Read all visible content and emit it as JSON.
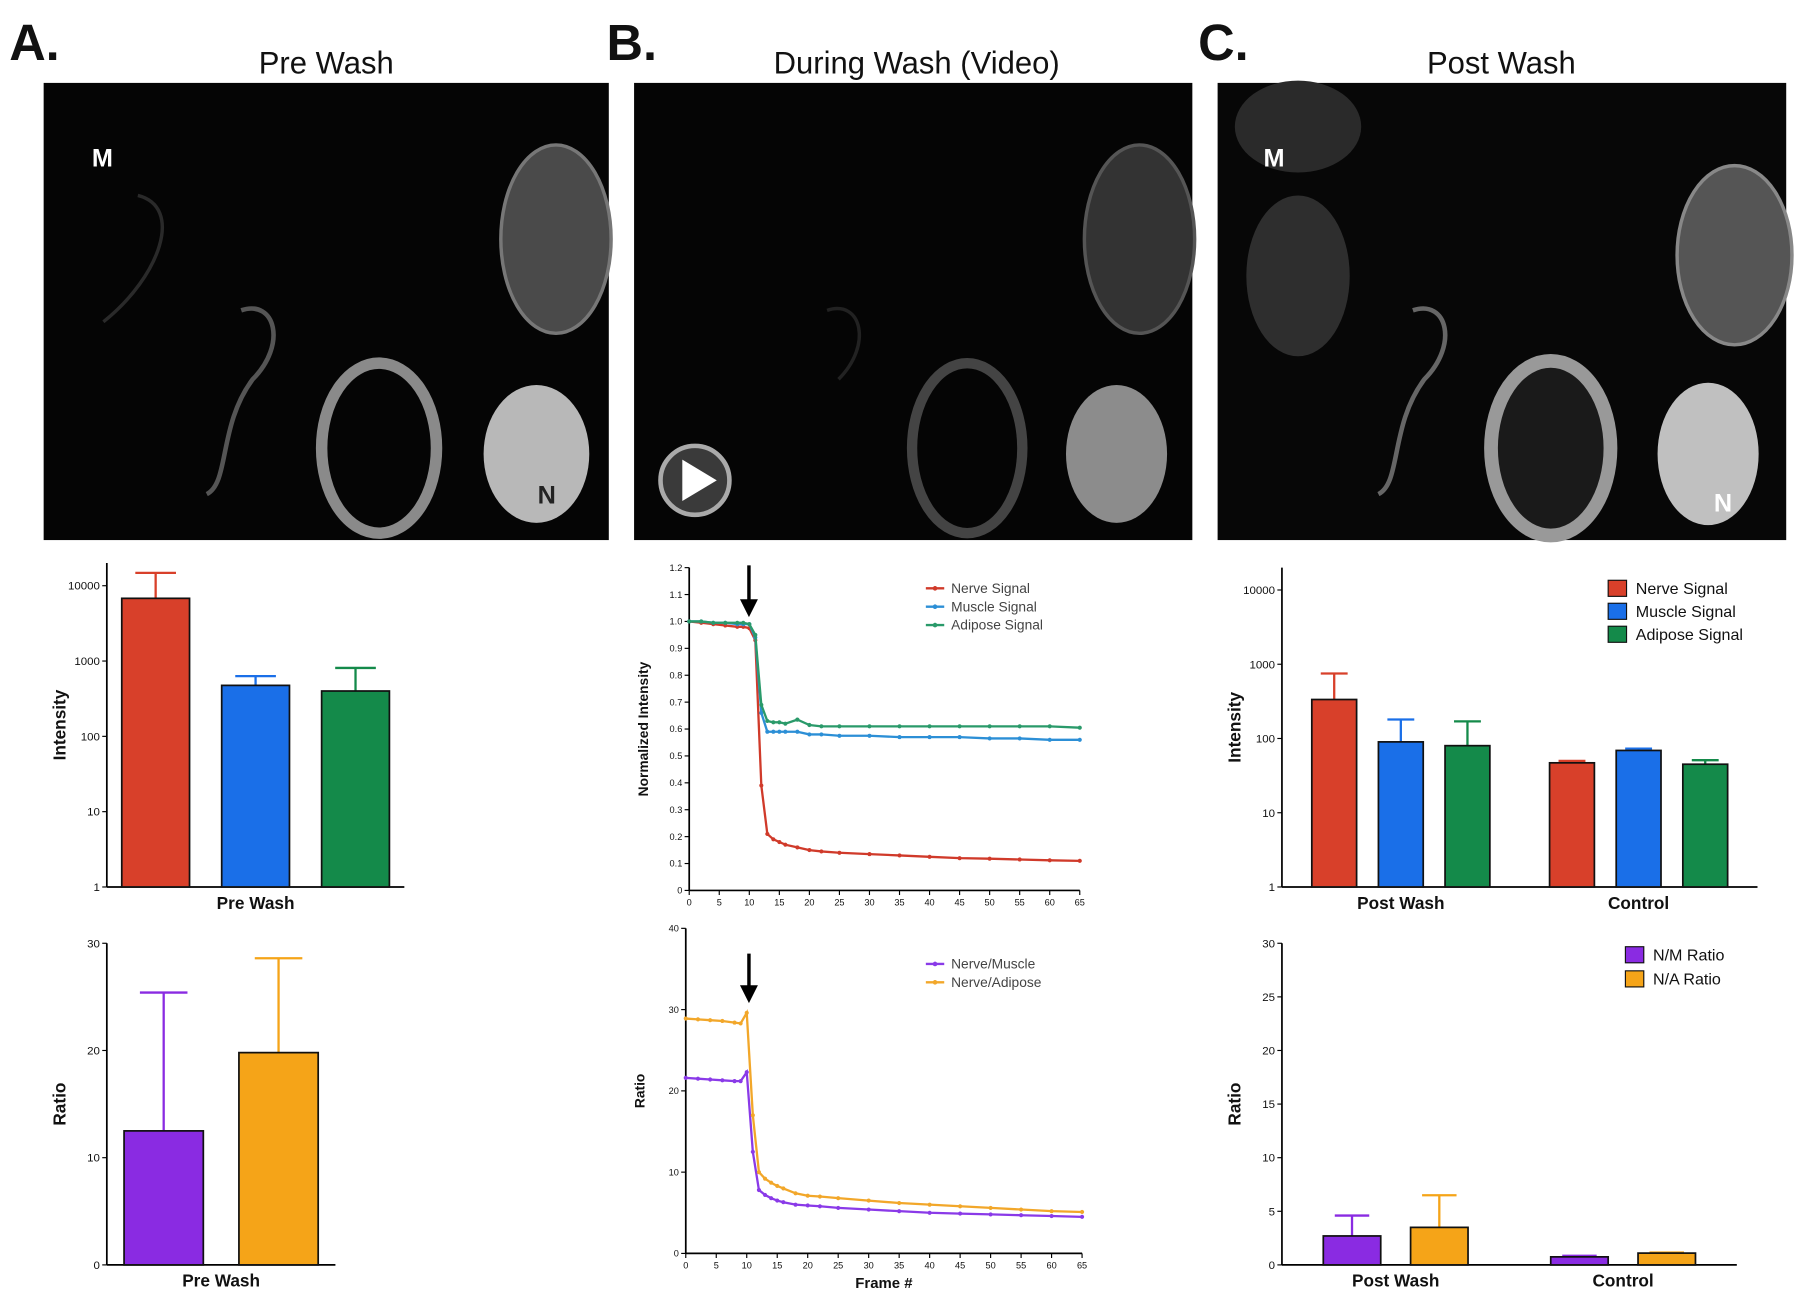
{
  "panels": [
    {
      "label": "A.",
      "title": "Pre Wash",
      "marks": [
        "M",
        "N"
      ]
    },
    {
      "label": "B.",
      "title": "During Wash (Video)"
    },
    {
      "label": "C.",
      "title": "Post Wash",
      "marks": [
        "M",
        "N"
      ]
    }
  ],
  "chart_data": [
    {
      "type": "bar",
      "log": true,
      "ylabel": "Intensity",
      "categories": [
        "Pre Wash"
      ],
      "ylim": [
        1,
        20000
      ],
      "yticks": [
        1,
        10,
        100,
        1000,
        10000
      ],
      "series": [
        {
          "color": "#d8402a",
          "values": [
            6800
          ],
          "errors": [
            8000
          ]
        },
        {
          "color": "#1a6fe8",
          "values": [
            475
          ],
          "errors": [
            155
          ]
        },
        {
          "color": "#148a4a",
          "values": [
            400
          ],
          "errors": [
            410
          ]
        }
      ]
    },
    {
      "type": "bar",
      "ylabel": "Ratio",
      "categories": [
        "Pre Wash"
      ],
      "ylim": [
        0,
        30
      ],
      "yticks": [
        0,
        10,
        20,
        30
      ],
      "series": [
        {
          "color": "#8a2be2",
          "values": [
            12.5
          ],
          "errors": [
            12.9
          ]
        },
        {
          "color": "#f5a418",
          "values": [
            19.8
          ],
          "errors": [
            8.8
          ]
        }
      ]
    },
    {
      "type": "line",
      "ylabel": "Normalized Intensity",
      "legend": "top-right",
      "x": [
        0,
        2,
        4,
        6,
        8,
        9,
        10,
        11,
        12,
        13,
        14,
        15,
        16,
        18,
        20,
        22,
        25,
        30,
        35,
        40,
        45,
        50,
        55,
        60,
        65
      ],
      "xlim": [
        0,
        65
      ],
      "xticks": [
        0,
        5,
        10,
        15,
        20,
        25,
        30,
        35,
        40,
        45,
        50,
        55,
        60,
        65
      ],
      "ylim": [
        0,
        1.2
      ],
      "yticks": [
        0,
        0.1,
        0.2,
        0.3,
        0.4,
        0.5,
        0.6,
        0.7,
        0.8,
        0.9,
        {
          "value": 1,
          "label": "1.0"
        },
        1.1,
        1.2
      ],
      "series": [
        {
          "name": "Nerve Signal",
          "color": "#d03a2a",
          "values": [
            1.0,
            0.995,
            0.99,
            0.985,
            0.98,
            0.98,
            0.975,
            0.93,
            0.39,
            0.21,
            0.19,
            0.18,
            0.17,
            0.16,
            0.15,
            0.145,
            0.14,
            0.135,
            0.13,
            0.125,
            0.12,
            0.118,
            0.115,
            0.112,
            0.11
          ]
        },
        {
          "name": "Muscle Signal",
          "color": "#2c8fd6",
          "values": [
            1.0,
            1.0,
            0.995,
            0.995,
            0.99,
            0.99,
            0.99,
            0.94,
            0.66,
            0.59,
            0.59,
            0.59,
            0.59,
            0.59,
            0.58,
            0.58,
            0.575,
            0.575,
            0.57,
            0.57,
            0.57,
            0.565,
            0.565,
            0.56,
            0.56
          ]
        },
        {
          "name": "Adipose Signal",
          "color": "#2a9a6a",
          "values": [
            1.0,
            1.0,
            0.995,
            0.995,
            0.995,
            0.995,
            0.99,
            0.95,
            0.69,
            0.63,
            0.625,
            0.625,
            0.62,
            0.635,
            0.615,
            0.61,
            0.61,
            0.61,
            0.61,
            0.61,
            0.61,
            0.61,
            0.61,
            0.61,
            0.605
          ]
        }
      ]
    },
    {
      "type": "line",
      "ylabel": "Ratio",
      "xlabel": "Frame #",
      "legend": "top-right",
      "x": [
        0,
        2,
        4,
        6,
        8,
        9,
        10,
        11,
        12,
        13,
        14,
        15,
        16,
        18,
        20,
        22,
        25,
        30,
        35,
        40,
        45,
        50,
        55,
        60,
        65
      ],
      "xlim": [
        0,
        65
      ],
      "xticks": [
        0,
        5,
        10,
        15,
        20,
        25,
        30,
        35,
        40,
        45,
        50,
        55,
        60,
        65
      ],
      "ylim": [
        0,
        40
      ],
      "yticks": [
        0,
        10,
        20,
        30,
        40
      ],
      "series": [
        {
          "name": "Nerve/Muscle",
          "color": "#8a3ae8",
          "values": [
            21.6,
            21.5,
            21.4,
            21.3,
            21.2,
            21.2,
            22.3,
            12.5,
            7.8,
            7.2,
            6.8,
            6.5,
            6.3,
            6.0,
            5.9,
            5.8,
            5.6,
            5.4,
            5.2,
            5.0,
            4.9,
            4.8,
            4.7,
            4.6,
            4.5
          ]
        },
        {
          "name": "Nerve/Adipose",
          "color": "#f2a72a",
          "values": [
            28.9,
            28.8,
            28.7,
            28.6,
            28.4,
            28.3,
            29.6,
            17.0,
            10.0,
            9.2,
            8.7,
            8.3,
            8.0,
            7.4,
            7.1,
            7.0,
            6.8,
            6.5,
            6.2,
            6.0,
            5.8,
            5.6,
            5.4,
            5.2,
            5.1
          ]
        }
      ]
    },
    {
      "type": "bar",
      "log": true,
      "ylabel": "Intensity",
      "legend": "top-right",
      "categories": [
        "Post Wash",
        "Control"
      ],
      "ylim": [
        1,
        20000
      ],
      "yticks": [
        1,
        10,
        100,
        1000,
        10000
      ],
      "series": [
        {
          "name": "Nerve Signal",
          "color": "#d8402a",
          "values": [
            335,
            47
          ],
          "errors": [
            415,
            3
          ]
        },
        {
          "name": "Muscle Signal",
          "color": "#1a6fe8",
          "values": [
            90,
            69
          ],
          "errors": [
            90,
            4
          ]
        },
        {
          "name": "Adipose Signal",
          "color": "#148a4a",
          "values": [
            80,
            45
          ],
          "errors": [
            90,
            6
          ]
        }
      ]
    },
    {
      "type": "bar",
      "ylabel": "Ratio",
      "legend": "top-right",
      "categories": [
        "Post Wash",
        "Control"
      ],
      "ylim": [
        0,
        30
      ],
      "yticks": [
        0,
        5,
        10,
        15,
        20,
        25,
        30
      ],
      "series": [
        {
          "name": "N/M Ratio",
          "color": "#8a2be2",
          "values": [
            2.7,
            0.75
          ],
          "errors": [
            1.9,
            0.1
          ]
        },
        {
          "name": "N/A Ratio",
          "color": "#f5a418",
          "values": [
            3.5,
            1.1
          ],
          "errors": [
            3.0,
            0.05
          ]
        }
      ]
    }
  ]
}
